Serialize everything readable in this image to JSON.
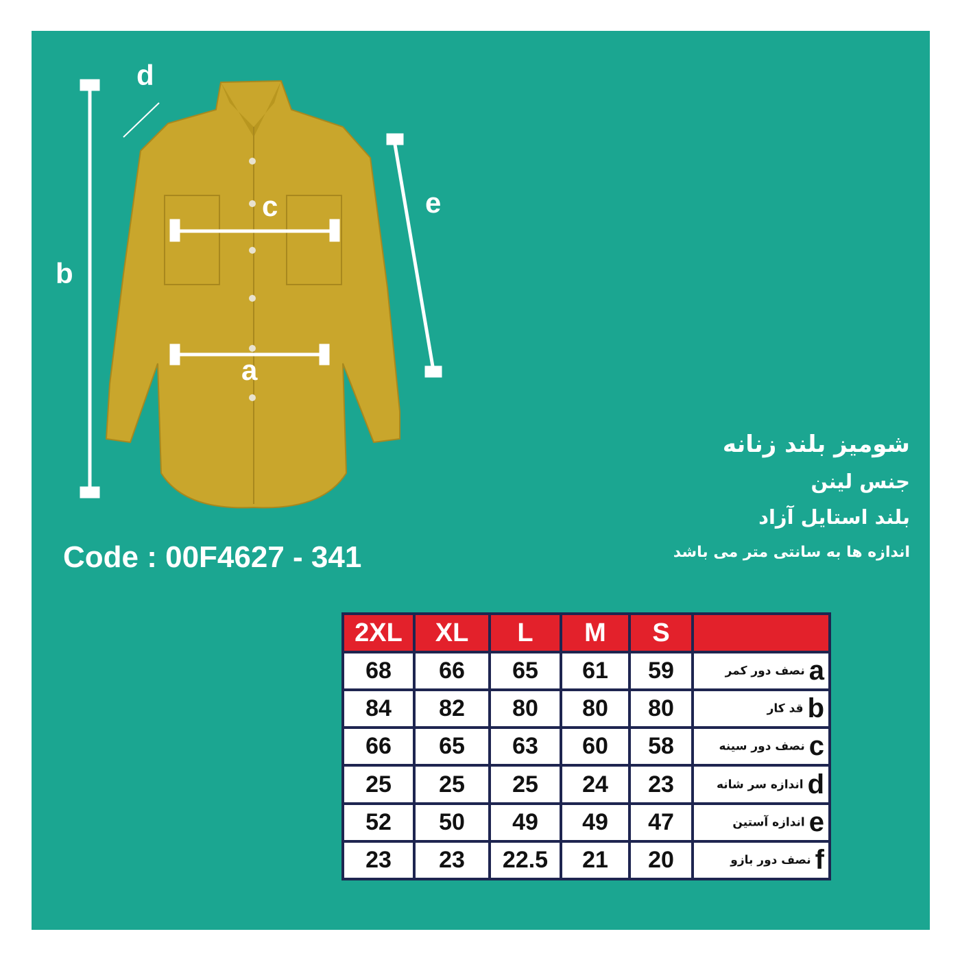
{
  "diagram_labels": {
    "a": "a",
    "b": "b",
    "c": "c",
    "d": "d",
    "e": "e"
  },
  "code": "Code : 00F4627 - 341",
  "title": "شومیز بلند زنانه",
  "material": "جنس لینن",
  "style": "بلند استایل آزاد",
  "note": "اندازه ها به سانتی متر می باشد",
  "colors": {
    "background": "#1ba691",
    "header": "#e3212b",
    "border": "#1e2550",
    "shirt": "#c9a62c"
  },
  "table": {
    "sizes": [
      "2XL",
      "XL",
      "L",
      "M",
      "S"
    ],
    "rows": [
      {
        "key": "a",
        "label": "نصف دور کمر",
        "values": [
          "68",
          "66",
          "65",
          "61",
          "59"
        ]
      },
      {
        "key": "b",
        "label": "قد کار",
        "values": [
          "84",
          "82",
          "80",
          "80",
          "80"
        ]
      },
      {
        "key": "c",
        "label": "نصف دور سینه",
        "values": [
          "66",
          "65",
          "63",
          "60",
          "58"
        ]
      },
      {
        "key": "d",
        "label": "اندازه سر شانه",
        "values": [
          "25",
          "25",
          "25",
          "24",
          "23"
        ]
      },
      {
        "key": "e",
        "label": "اندازه آستین",
        "values": [
          "52",
          "50",
          "49",
          "49",
          "47"
        ]
      },
      {
        "key": "f",
        "label": "نصف دور بازو",
        "values": [
          "23",
          "23",
          "22.5",
          "21",
          "20"
        ]
      }
    ]
  }
}
